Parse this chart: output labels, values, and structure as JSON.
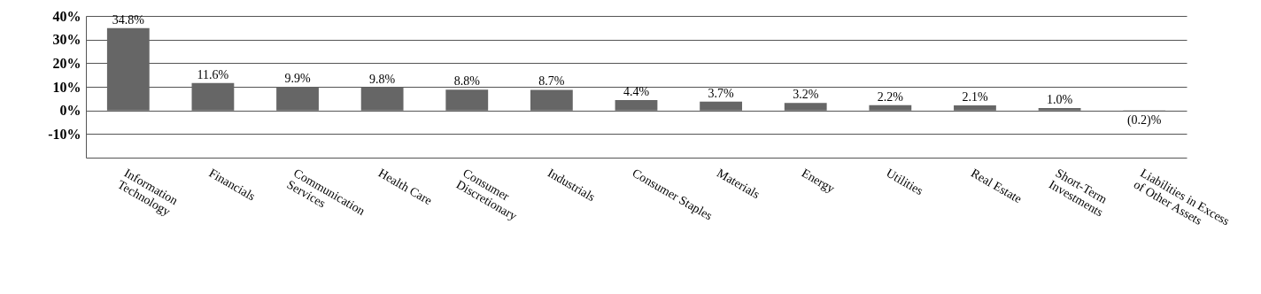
{
  "chart_data": {
    "type": "bar",
    "categories": [
      "Information Technology",
      "Financials",
      "Communication Services",
      "Health Care",
      "Consumer Discretionary",
      "Industrials",
      "Consumer Staples",
      "Materials",
      "Energy",
      "Utilities",
      "Real Estate",
      "Short-Term Investments",
      "Liabilities in Excess of Other Assets"
    ],
    "values": [
      34.8,
      11.6,
      9.9,
      9.8,
      8.8,
      8.7,
      4.4,
      3.7,
      3.2,
      2.2,
      2.1,
      1.0,
      -0.2
    ],
    "value_labels": [
      "34.8%",
      "11.6%",
      "9.9%",
      "9.8%",
      "8.8%",
      "8.7%",
      "4.4%",
      "3.7%",
      "3.2%",
      "2.2%",
      "2.1%",
      "1.0%",
      "(0.2)%"
    ],
    "color": "#666666",
    "ylim": [
      -20,
      40
    ],
    "yticks": [
      {
        "value": 40,
        "label": "40%"
      },
      {
        "value": 30,
        "label": "30%"
      },
      {
        "value": 20,
        "label": "20%"
      },
      {
        "value": 10,
        "label": "10%"
      },
      {
        "value": 0,
        "label": "0%"
      },
      {
        "value": -10,
        "label": "-10%"
      }
    ],
    "grid": "y"
  }
}
